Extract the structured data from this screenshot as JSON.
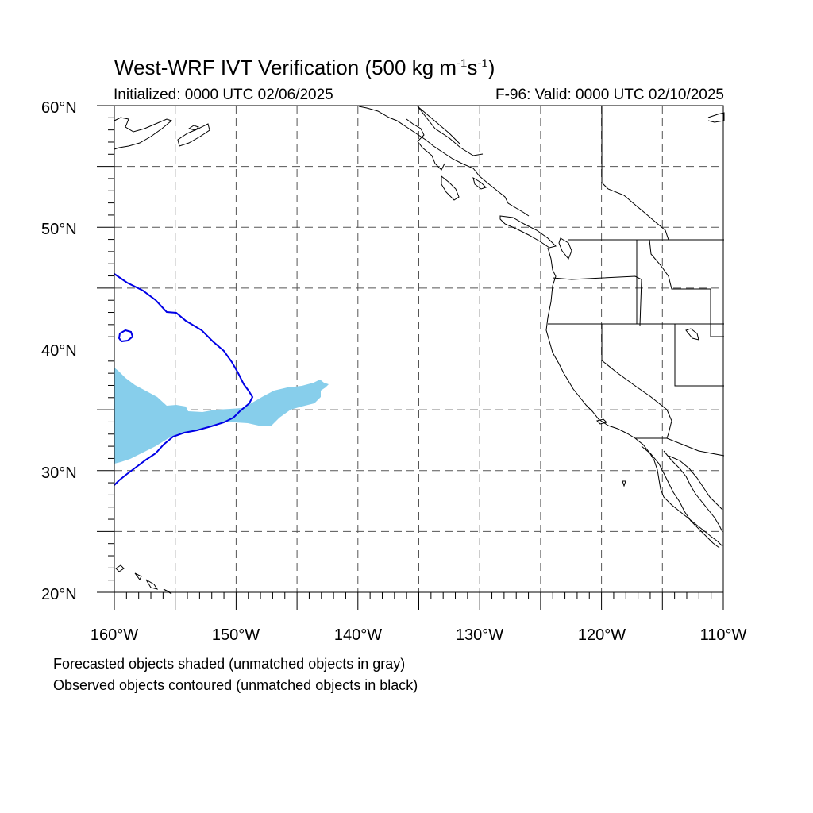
{
  "title": {
    "main": "West-WRF IVT Verification (500 kg m",
    "exp1": "-1",
    "mid": "s",
    "exp2": "-1",
    "end": ")"
  },
  "subtitle": {
    "initialized": "Initialized: 0000 UTC 02/06/2025",
    "valid": "F-96: Valid: 0000 UTC 02/10/2025"
  },
  "map": {
    "lat_range": [
      20,
      60
    ],
    "lon_range": [
      -160,
      -110
    ],
    "lat_labels": [
      "20°N",
      "30°N",
      "40°N",
      "50°N",
      "60°N"
    ],
    "lon_labels": [
      "160°W",
      "150°W",
      "140°W",
      "130°W",
      "120°W",
      "110°W"
    ],
    "grid_spacing_deg": 5,
    "forecast_object_color": "#87ceeb",
    "observed_contour_color": "#0000e6"
  },
  "caption": {
    "line1": "Forecasted objects shaded (unmatched objects in gray)",
    "line2": "Observed objects contoured (unmatched objects in black)"
  }
}
